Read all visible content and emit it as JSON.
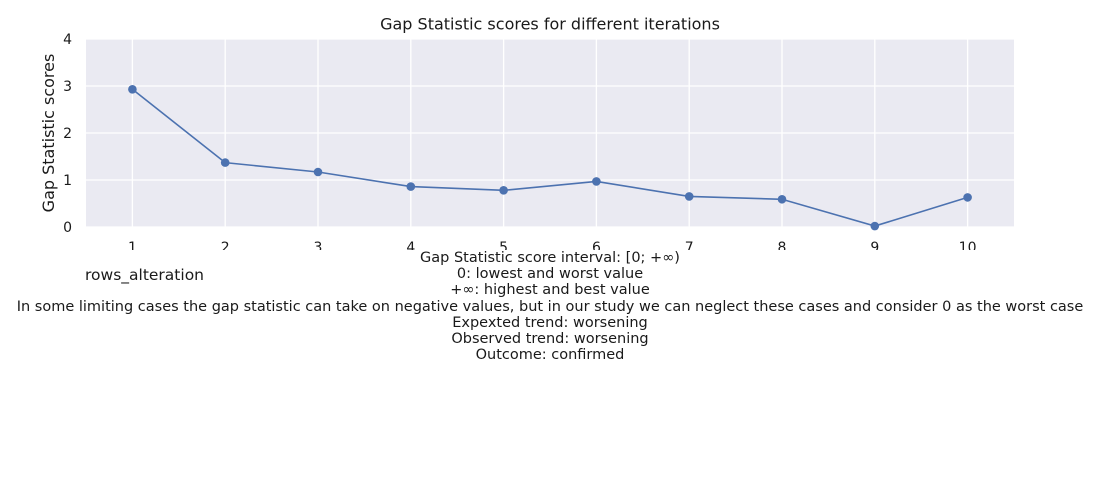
{
  "chart_data": {
    "type": "line",
    "title": "Gap Statistic scores for different iterations",
    "xlabel": "",
    "ylabel": "Gap Statistic scores",
    "x": [
      1,
      2,
      3,
      4,
      5,
      6,
      7,
      8,
      9,
      10
    ],
    "series": [
      {
        "values": [
          2.93,
          1.37,
          1.17,
          0.86,
          0.78,
          0.97,
          0.65,
          0.59,
          0.02,
          0.63
        ],
        "color": "#4c72b0"
      }
    ],
    "xticks": [
      "1",
      "2",
      "3",
      "4",
      "5",
      "6",
      "7",
      "8",
      "9",
      "10"
    ],
    "yticks": [
      "0",
      "1",
      "2",
      "3",
      "4"
    ],
    "xlim": [
      0.5,
      10.5
    ],
    "ylim": [
      0,
      4
    ],
    "grid": true,
    "background": "#eaeaf2",
    "grid_color": "#ffffff"
  },
  "side_label": "rows_alteration",
  "caption": [
    "Gap Statistic score interval: [0; +∞)",
    "0: lowest and worst value",
    "+∞: highest and best value",
    "In some limiting cases the gap statistic can take on negative values, but in our study we can neglect these cases and consider 0 as the worst case",
    "Expexted trend: worsening",
    "Observed trend: worsening",
    "Outcome: confirmed"
  ]
}
